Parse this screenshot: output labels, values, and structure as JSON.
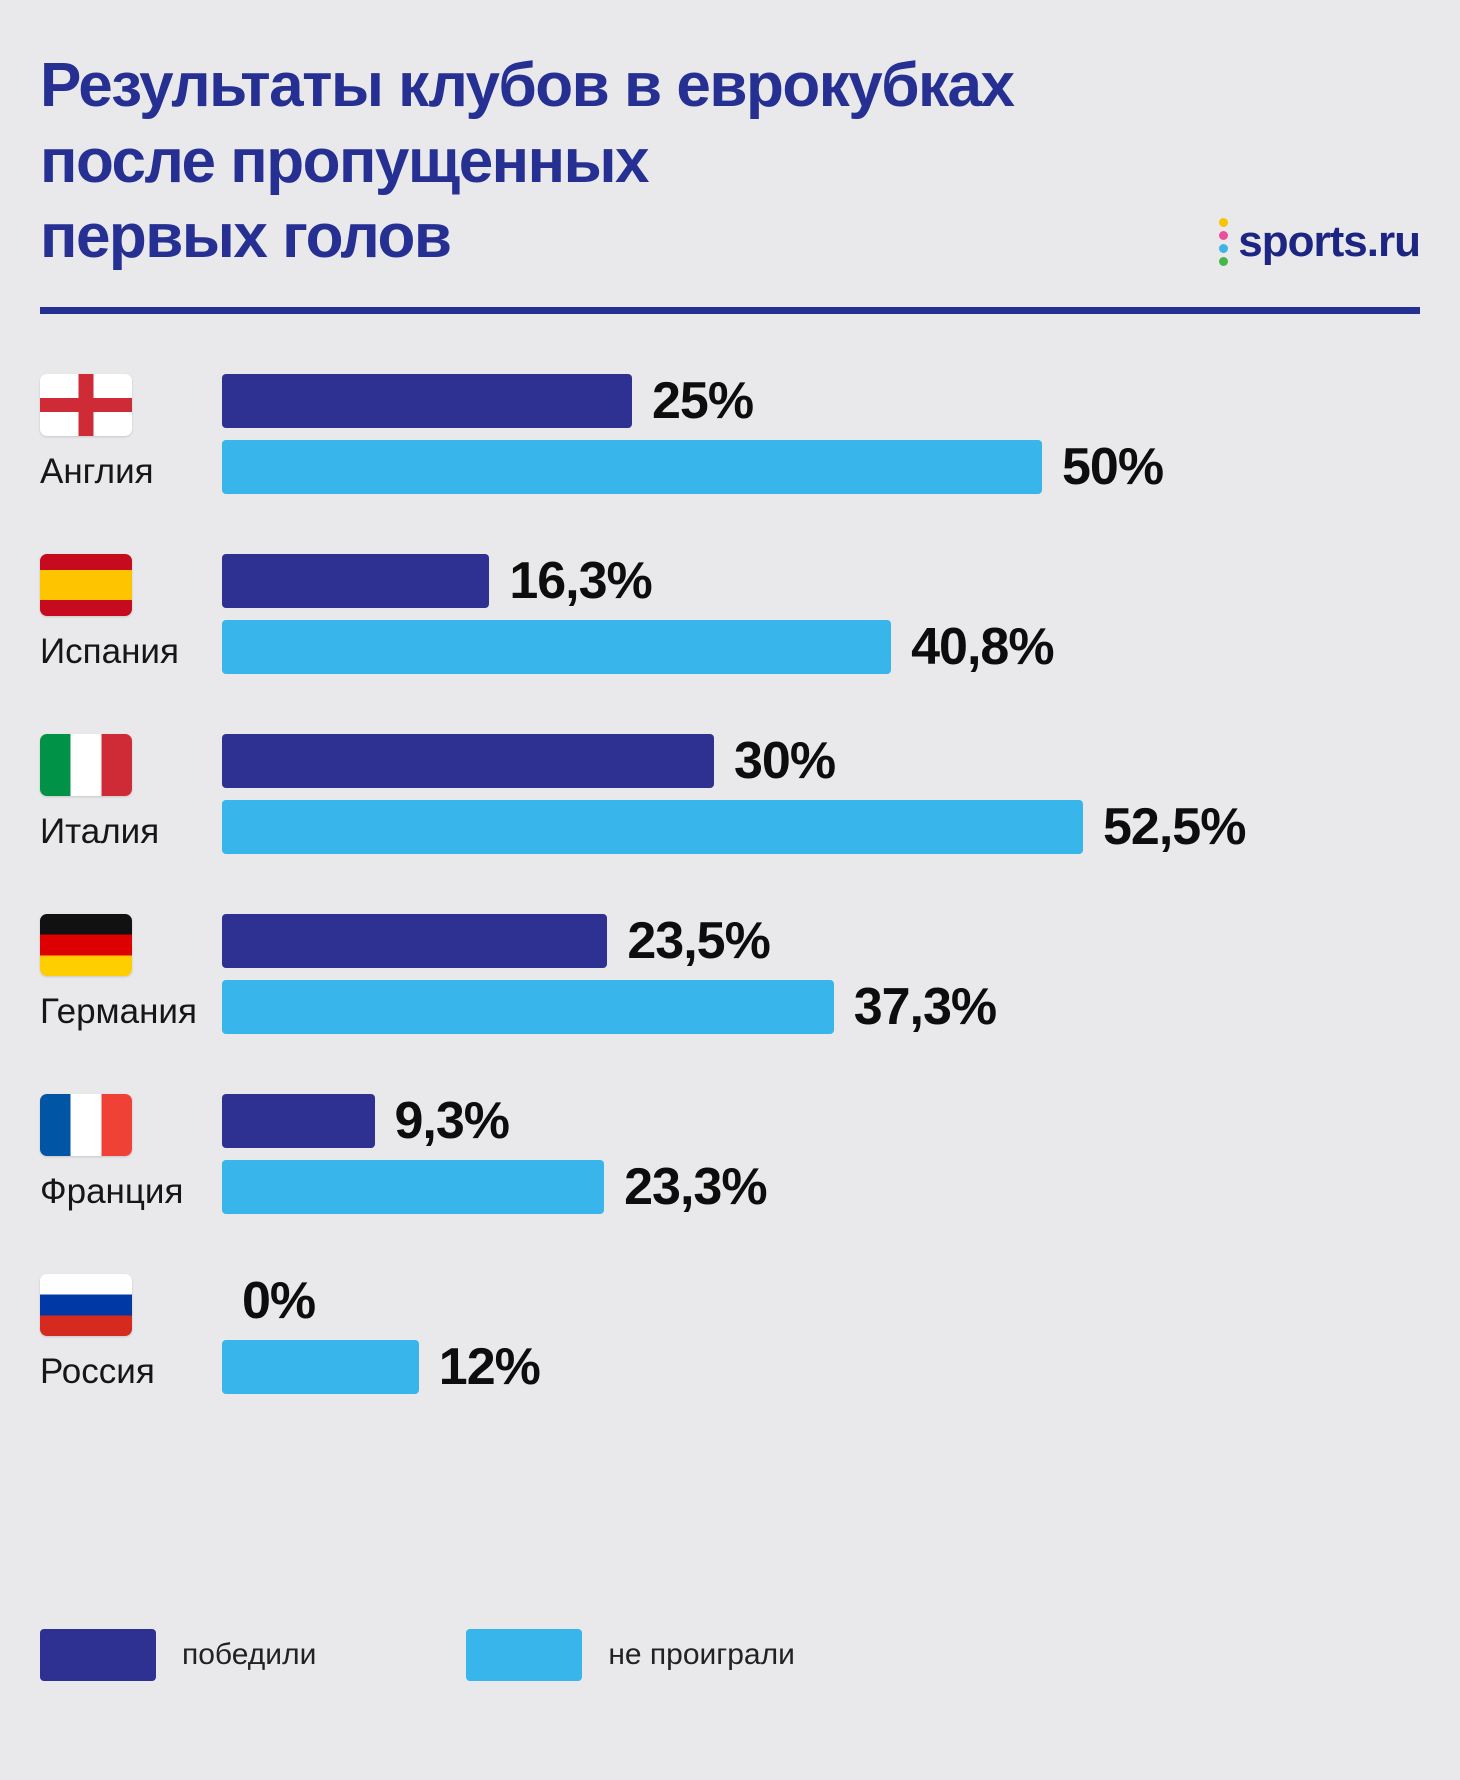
{
  "title": {
    "lines": [
      "Результаты клубов в еврокубках",
      "после пропущенных",
      "первых голов"
    ]
  },
  "logo": {
    "text": "sports.ru"
  },
  "colors": {
    "background": "#e9e9ec",
    "title": "#262f92",
    "bar_won": "#2e3192",
    "bar_unbeaten": "#38b5ea"
  },
  "rows": [
    {
      "country": "Англия",
      "flag": "flag-england",
      "won": 25,
      "won_label": "25%",
      "unbeaten": 50,
      "unbeaten_label": "50%"
    },
    {
      "country": "Испания",
      "flag": "flag-spain",
      "won": 16.3,
      "won_label": "16,3%",
      "unbeaten": 40.8,
      "unbeaten_label": "40,8%"
    },
    {
      "country": "Италия",
      "flag": "flag-italy",
      "won": 30,
      "won_label": "30%",
      "unbeaten": 52.5,
      "unbeaten_label": "52,5%"
    },
    {
      "country": "Германия",
      "flag": "flag-germany",
      "won": 23.5,
      "won_label": "23,5%",
      "unbeaten": 37.3,
      "unbeaten_label": "37,3%"
    },
    {
      "country": "Франция",
      "flag": "flag-france",
      "won": 9.3,
      "won_label": "9,3%",
      "unbeaten": 23.3,
      "unbeaten_label": "23,3%"
    },
    {
      "country": "Россия",
      "flag": "flag-russia",
      "won": 0,
      "won_label": "0%",
      "unbeaten": 12,
      "unbeaten_label": "12%"
    }
  ],
  "legend": {
    "items": [
      {
        "label": "победили",
        "color": "#2e3192"
      },
      {
        "label": "не проиграли",
        "color": "#38b5ea"
      }
    ]
  },
  "chart_data": {
    "type": "bar",
    "orientation": "horizontal",
    "title": "Результаты клубов в еврокубках после пропущенных первых голов",
    "categories": [
      "Англия",
      "Испания",
      "Италия",
      "Германия",
      "Франция",
      "Россия"
    ],
    "series": [
      {
        "name": "победили",
        "values": [
          25,
          16.3,
          30,
          23.5,
          9.3,
          0
        ],
        "color": "#2e3192"
      },
      {
        "name": "не проиграли",
        "values": [
          50,
          40.8,
          52.5,
          37.3,
          23.3,
          12
        ],
        "color": "#38b5ea"
      }
    ],
    "value_unit": "%",
    "xlim": [
      0,
      60
    ],
    "grid": false,
    "legend_position": "bottom",
    "source": "sports.ru"
  }
}
